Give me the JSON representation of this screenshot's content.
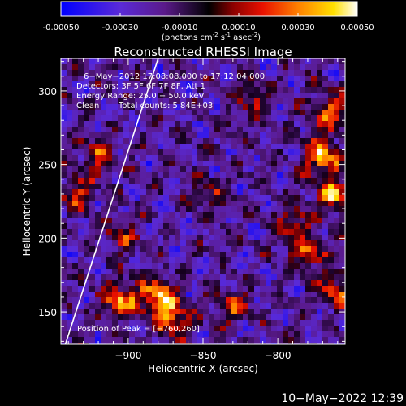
{
  "chart_data": [
    {
      "type": "heatmap",
      "role": "colorbar",
      "orientation": "horizontal",
      "colormap": "blue-purple-black-red-orange-yellow-white (diverging)",
      "range": [
        -0.0005,
        0.0005
      ],
      "tick_values": [
        -0.0005,
        -0.0003,
        -0.0001,
        0.0001,
        0.0003,
        0.0005
      ],
      "tick_labels": [
        "-0.00050",
        "-0.00030",
        "-0.00010",
        "0.00010",
        "0.00030",
        "0.00050"
      ],
      "units_label": "(photons cm",
      "units_exp1": "-2",
      "units_mid": " s",
      "units_exp2": "-1",
      "units_mid2": " asec",
      "units_exp3": "-2",
      "units_end": ")"
    },
    {
      "type": "heatmap",
      "title": "Reconstructed RHESSI Image",
      "xlabel": "Heliocentric X (arcsec)",
      "ylabel": "Heliocentric Y (arcsec)",
      "xlim": [
        -945,
        -755
      ],
      "ylim": [
        128,
        322
      ],
      "x_ticks": [
        -900,
        -850,
        -800
      ],
      "x_tick_labels": [
        "−900",
        "−850",
        "−800"
      ],
      "y_ticks": [
        150,
        200,
        250,
        300
      ],
      "y_tick_labels": [
        "150",
        "200",
        "250",
        "300"
      ],
      "grid": false,
      "limb_line": {
        "x": [
          -942,
          -880
        ],
        "y": [
          128,
          322
        ]
      },
      "peak": {
        "x": -760,
        "y": 260
      },
      "annotations": {
        "time": "6−May−2012 17:08:08.000 to 17:12:04.000",
        "detectors": "Detectors: 3F 5F 6F 7F 8F, Att 1",
        "energy": "Energy Range: 25.0 − 50.0 keV",
        "clean": "Clean",
        "counts": "Total counts: 5.84E+03",
        "peak": "Position of Peak = [−760,260]"
      },
      "bright_sources": [
        {
          "x": -880,
          "y": 160,
          "level": 0.0005
        },
        {
          "x": -870,
          "y": 145,
          "level": 0.0004
        },
        {
          "x": -905,
          "y": 158,
          "level": 0.00045
        },
        {
          "x": -770,
          "y": 255,
          "level": 0.0005
        },
        {
          "x": -763,
          "y": 230,
          "level": 0.00045
        },
        {
          "x": -765,
          "y": 285,
          "level": 0.0004
        },
        {
          "x": -790,
          "y": 210,
          "level": 0.0003
        },
        {
          "x": -780,
          "y": 190,
          "level": 0.00035
        },
        {
          "x": -760,
          "y": 165,
          "level": 0.00035
        },
        {
          "x": -830,
          "y": 155,
          "level": 0.0003
        },
        {
          "x": -920,
          "y": 255,
          "level": 0.0003
        },
        {
          "x": -905,
          "y": 200,
          "level": 0.00025
        },
        {
          "x": -815,
          "y": 295,
          "level": 0.00025
        },
        {
          "x": -845,
          "y": 230,
          "level": 0.0002
        },
        {
          "x": -935,
          "y": 230,
          "level": 0.0003
        }
      ]
    }
  ],
  "footer": {
    "timestamp": "10−May−2022 12:39"
  }
}
